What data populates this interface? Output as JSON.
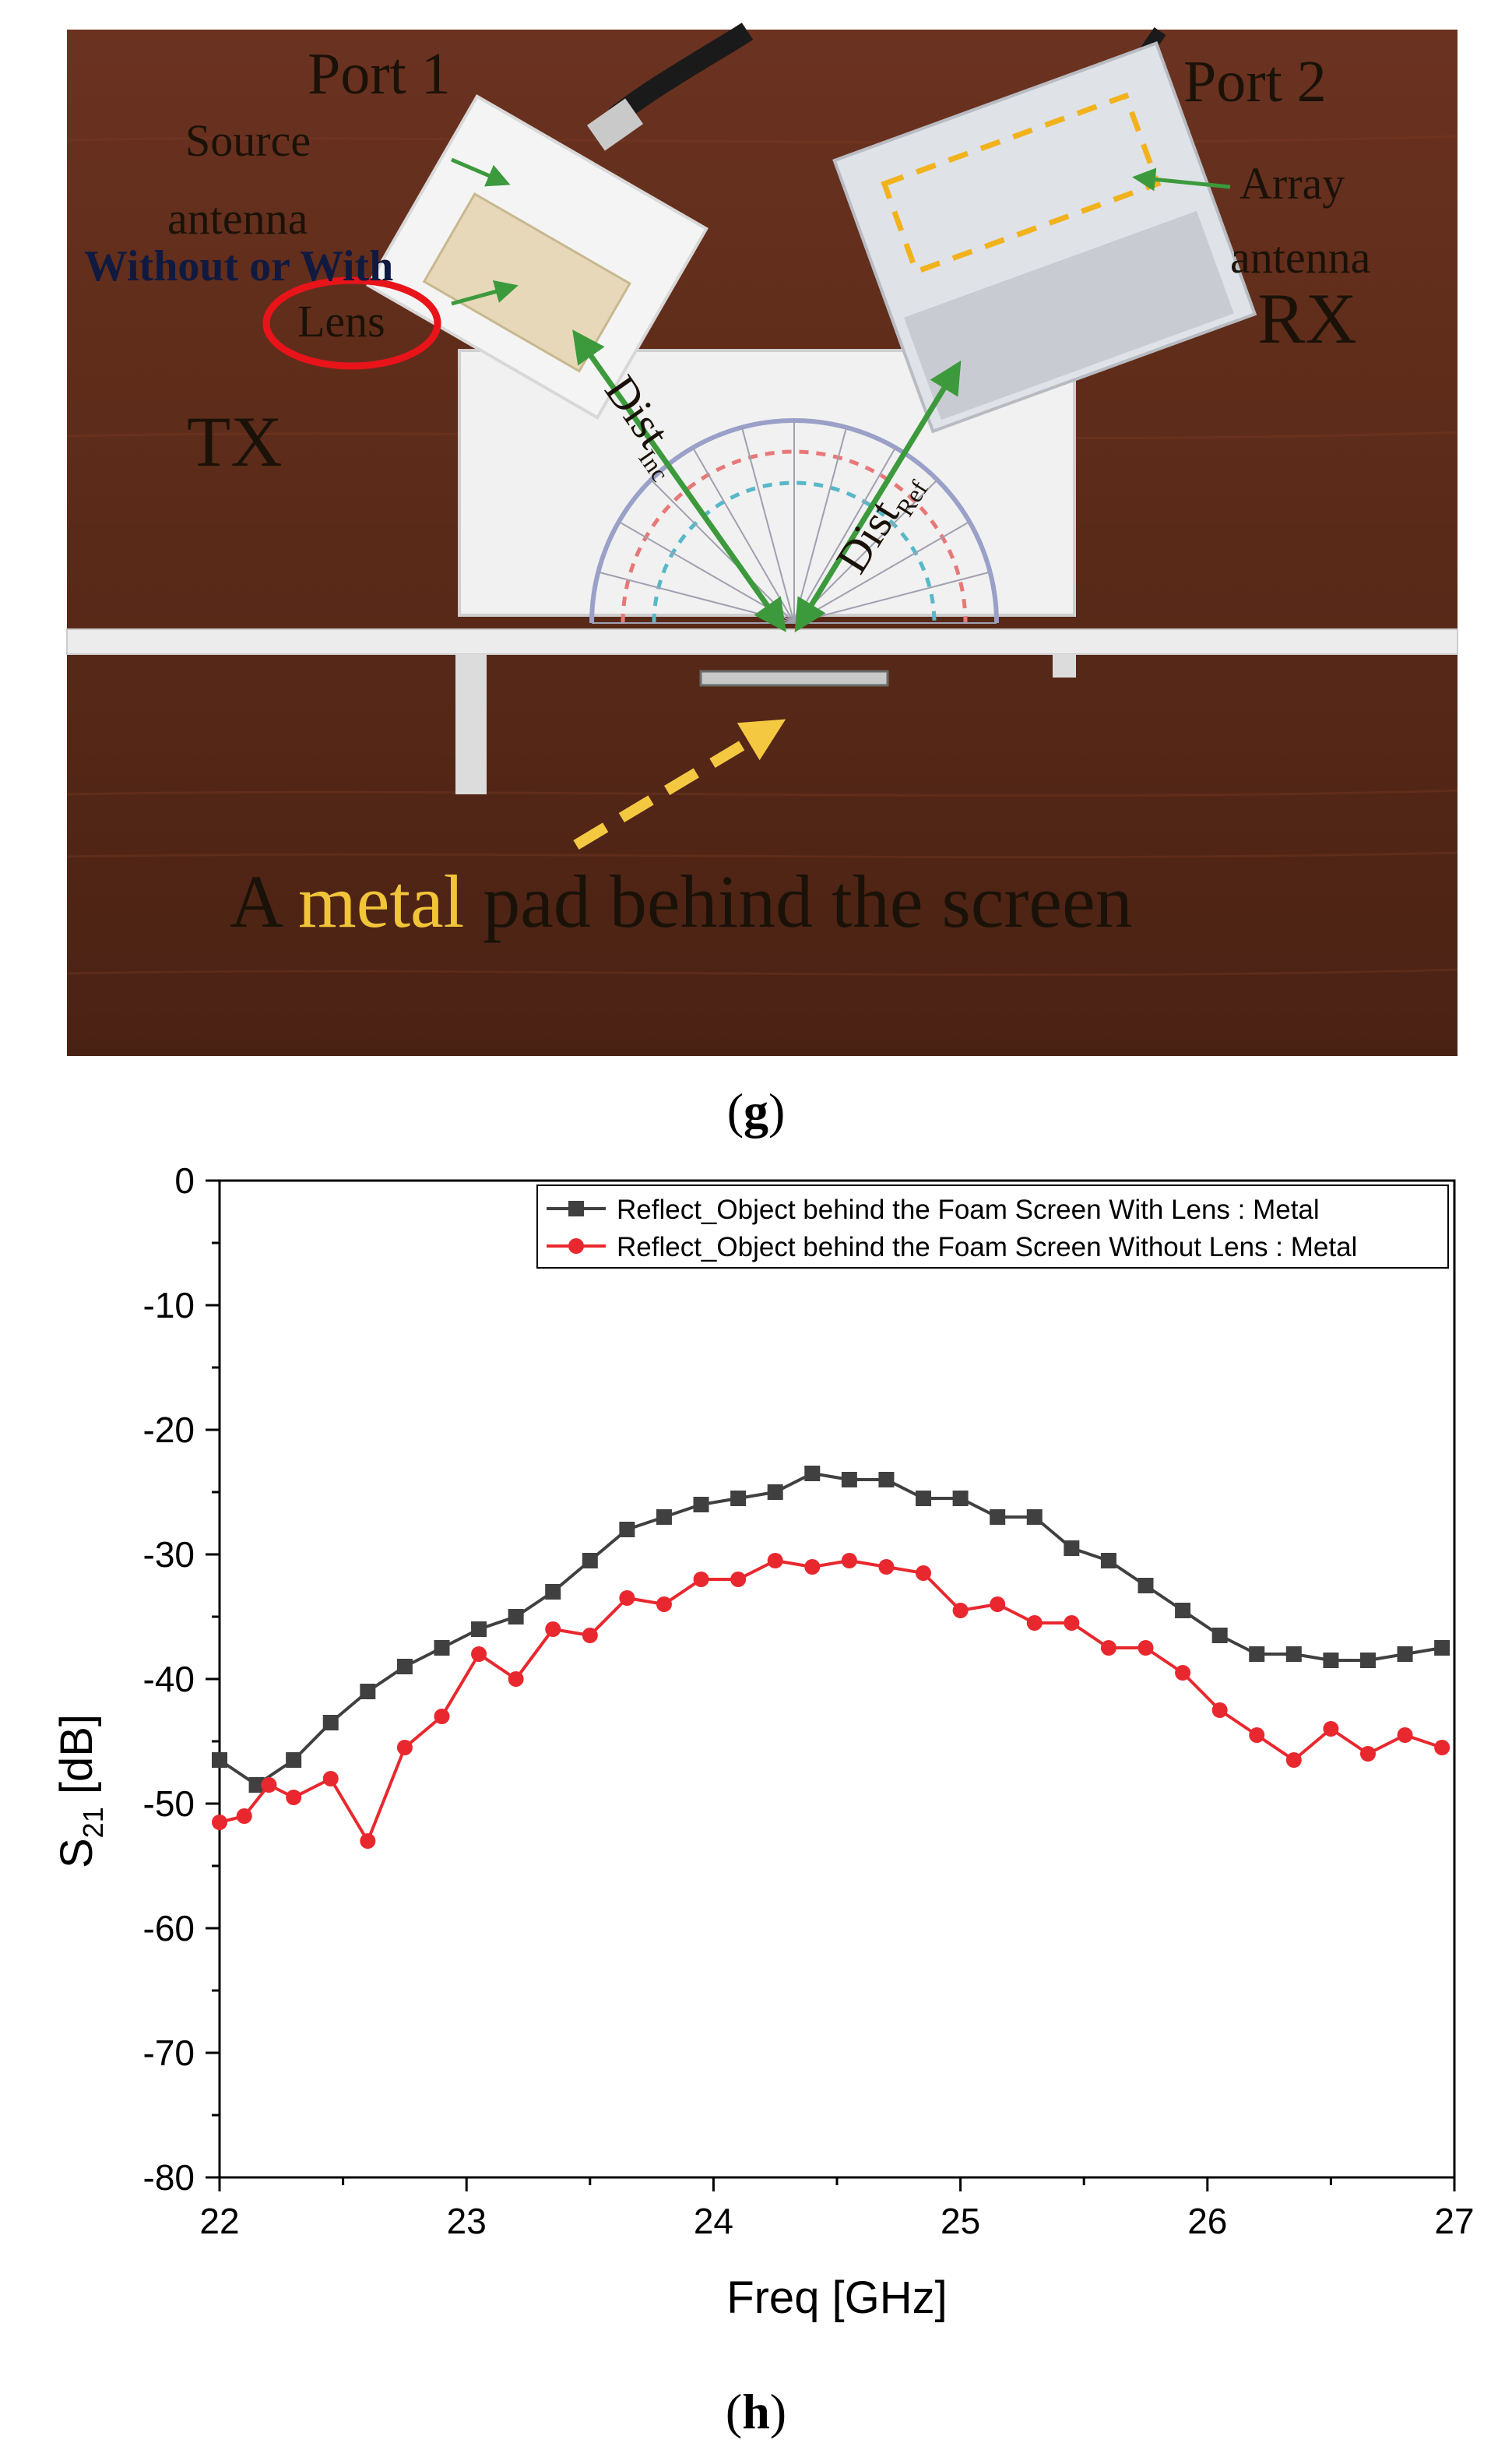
{
  "photo": {
    "labels": {
      "port1": "Port 1",
      "port2": "Port 2",
      "source_line1": "Source",
      "source_line2": "antenna",
      "without_with": "Without or With",
      "lens": "Lens",
      "tx": "TX",
      "array_line1": "Array",
      "array_line2": "antenna",
      "rx": "RX",
      "dist_inc_main": "Dist",
      "dist_inc_sub": "Inc",
      "dist_ref_main": "Dist",
      "dist_ref_sub": "Ref",
      "metal_pre": "A ",
      "metal_word": "metal",
      "metal_post": " pad behind the screen"
    },
    "colors": {
      "wood": "#5a2a18",
      "arrow_green": "#3c9a3c",
      "lens_circle": "#e8141a",
      "metal_text": "#f2c43a",
      "dashed_arrow": "#f5c842"
    }
  },
  "panel_g": {
    "open": "(",
    "letter": "g",
    "close": ")"
  },
  "panel_h": {
    "open": "(",
    "letter": "h",
    "close": ")"
  },
  "chart_data": {
    "type": "line",
    "xlabel": "Freq [GHz]",
    "ylabel_main": "S",
    "ylabel_sub": "21",
    "ylabel_unit": " [dB]",
    "xlim": [
      22,
      27
    ],
    "ylim": [
      -80,
      0
    ],
    "xticks": [
      22,
      23,
      24,
      25,
      26,
      27
    ],
    "yticks": [
      0,
      -10,
      -20,
      -30,
      -40,
      -50,
      -60,
      -70,
      -80
    ],
    "legend_position": "top-right",
    "series": [
      {
        "name": "Reflect_Object behind the Foam Screen With Lens : Metal",
        "color": "#404040",
        "marker": "square",
        "x": [
          22.0,
          22.15,
          22.3,
          22.45,
          22.6,
          22.75,
          22.9,
          23.05,
          23.2,
          23.35,
          23.5,
          23.65,
          23.8,
          23.95,
          24.1,
          24.25,
          24.4,
          24.55,
          24.7,
          24.85,
          25.0,
          25.15,
          25.3,
          25.45,
          25.6,
          25.75,
          25.9,
          26.05,
          26.2,
          26.35,
          26.5,
          26.65,
          26.8,
          26.95
        ],
        "y": [
          -46.5,
          -48.5,
          -46.5,
          -43.5,
          -41.0,
          -39.0,
          -37.5,
          -36.0,
          -35.0,
          -33.0,
          -30.5,
          -28.0,
          -27.0,
          -26.0,
          -25.5,
          -25.0,
          -23.5,
          -24.0,
          -24.0,
          -25.5,
          -25.5,
          -27.0,
          -27.0,
          -29.5,
          -30.5,
          -32.5,
          -34.5,
          -36.5,
          -38.0,
          -38.0,
          -38.5,
          -38.5,
          -38.0,
          -37.5
        ]
      },
      {
        "name": "Reflect_Object behind the Foam Screen Without Lens : Metal",
        "color": "#e8282e",
        "marker": "circle",
        "x": [
          22.0,
          22.1,
          22.2,
          22.3,
          22.45,
          22.6,
          22.75,
          22.9,
          23.05,
          23.2,
          23.35,
          23.5,
          23.65,
          23.8,
          23.95,
          24.1,
          24.25,
          24.4,
          24.55,
          24.7,
          24.85,
          25.0,
          25.15,
          25.3,
          25.45,
          25.6,
          25.75,
          25.9,
          26.05,
          26.2,
          26.35,
          26.5,
          26.65,
          26.8,
          26.95
        ],
        "y": [
          -51.5,
          -51.0,
          -48.5,
          -49.5,
          -48.0,
          -53.0,
          -45.5,
          -43.0,
          -38.0,
          -40.0,
          -36.0,
          -36.5,
          -33.5,
          -34.0,
          -32.0,
          -32.0,
          -30.5,
          -31.0,
          -30.5,
          -31.0,
          -31.5,
          -34.5,
          -34.0,
          -35.5,
          -35.5,
          -37.5,
          -37.5,
          -39.5,
          -42.5,
          -44.5,
          -46.5,
          -44.0,
          -46.0,
          -44.5,
          -45.5
        ]
      }
    ]
  }
}
